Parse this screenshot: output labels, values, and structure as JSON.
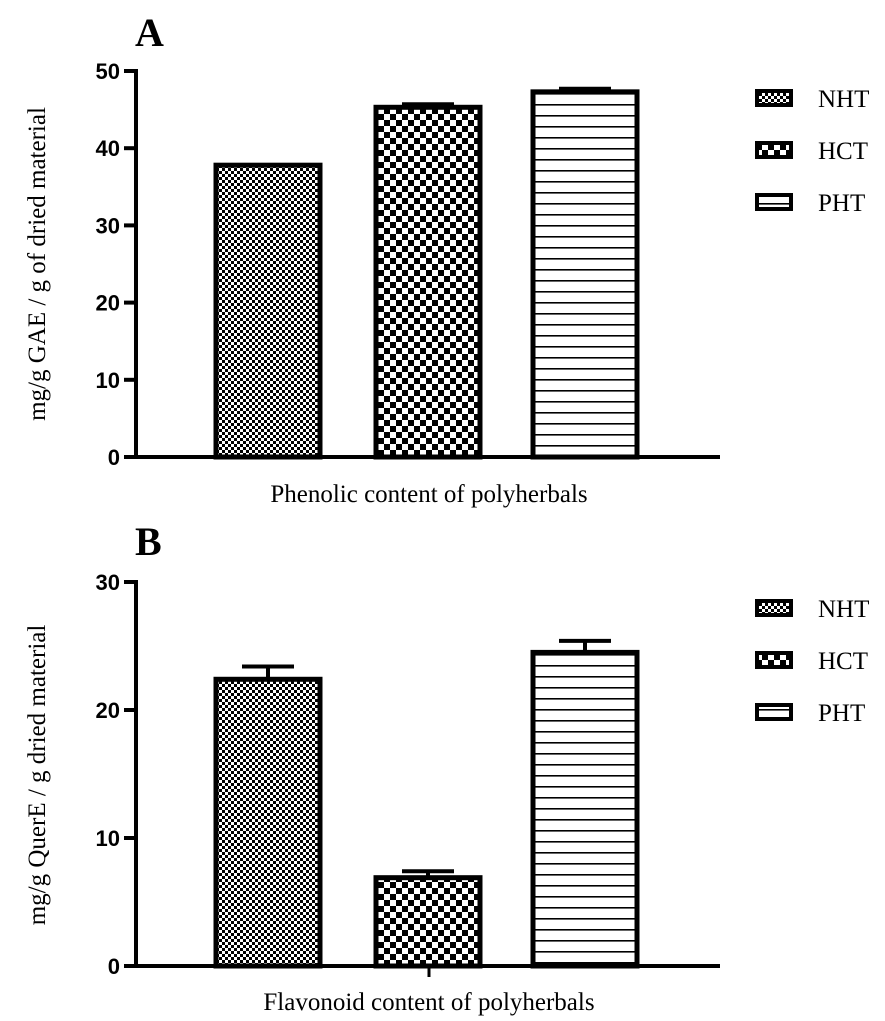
{
  "chart_data": [
    {
      "panel": "A",
      "type": "bar",
      "categories": [
        "NHT",
        "HCT",
        "PHT"
      ],
      "values": [
        37.8,
        45.3,
        47.3
      ],
      "errors": [
        0.0,
        0.4,
        0.4
      ],
      "xlabel": "Phenolic content of polyherbals",
      "ylabel": "mg/g GAE / g of dried material",
      "ylim": [
        0,
        50
      ],
      "yticks": [
        0,
        10,
        20,
        30,
        40,
        50
      ],
      "legend": [
        "NHT",
        "HCT",
        "PHT"
      ],
      "legend_position": "right",
      "grid": false
    },
    {
      "panel": "B",
      "type": "bar",
      "categories": [
        "NHT",
        "HCT",
        "PHT"
      ],
      "values": [
        22.4,
        6.9,
        24.5
      ],
      "errors": [
        1.0,
        0.5,
        0.9
      ],
      "xlabel": "Flavonoid content of polyherbals",
      "ylabel": "mg/g QuerE / g dried material",
      "ylim": [
        0,
        30
      ],
      "yticks": [
        0,
        10,
        20,
        30
      ],
      "legend": [
        "NHT",
        "HCT",
        "PHT"
      ],
      "legend_position": "right",
      "grid": false
    }
  ],
  "patterns": {
    "NHT": "fine-checker",
    "HCT": "coarse-checker",
    "PHT": "horizontal-stripes"
  },
  "colors": {
    "ink": "#000000",
    "background": "#ffffff"
  }
}
